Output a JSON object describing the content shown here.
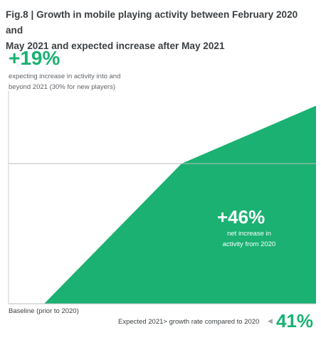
{
  "figure": {
    "title_line1": "Fig.8 | Growth in mobile playing activity between February 2020 and",
    "title_line2": "May 2021 and expected increase after May 2021"
  },
  "stat_top": {
    "value": "+19%",
    "caption_line1": "expecting increase in activity into and",
    "caption_line2": "beyond 2021 (30% for new players)"
  },
  "stat_mid": {
    "value": "+46%",
    "caption_line1": "net increase in",
    "caption_line2": "activity from 2020"
  },
  "baseline_label": "Baseline (prior to 2020)",
  "footer": {
    "text": "Expected 2021> growth rate compared to 2020",
    "arrow_icon": "left-triangle-icon",
    "value": "41%"
  },
  "colors": {
    "accent": "#1ab172",
    "text": "#3c4043",
    "grid": "#bdbdbd"
  },
  "chart_data": {
    "type": "area",
    "series": [
      {
        "values": [
          0,
          0,
          46,
          65
        ]
      }
    ],
    "annotations": [
      "+46%",
      "+19%",
      "41%"
    ],
    "reference_lines": [
      "Baseline (prior to 2020)"
    ],
    "grid": false
  }
}
